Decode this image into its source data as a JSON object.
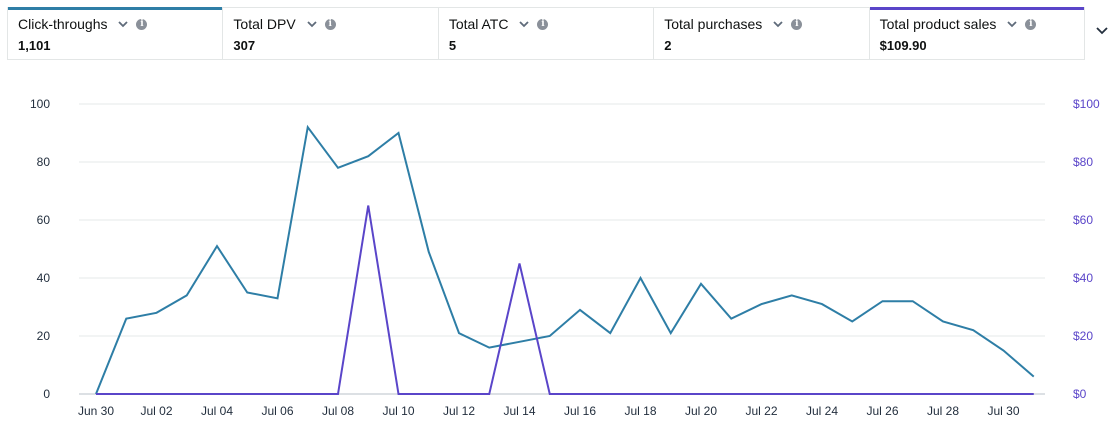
{
  "metrics": [
    {
      "label": "Click-throughs",
      "value": "1,101",
      "accent": "#2e7ea6"
    },
    {
      "label": "Total DPV",
      "value": "307",
      "accent": ""
    },
    {
      "label": "Total ATC",
      "value": "5",
      "accent": ""
    },
    {
      "label": "Total purchases",
      "value": "2",
      "accent": ""
    },
    {
      "label": "Total product sales",
      "value": "$109.90",
      "accent": "#5a45c9"
    }
  ],
  "icons": {
    "dropdown": "chevron-down-icon",
    "info": "info-icon",
    "expand": "chevron-down-icon"
  },
  "chart_data": {
    "type": "line",
    "categories": [
      "Jun 30",
      "Jul 01",
      "Jul 02",
      "Jul 03",
      "Jul 04",
      "Jul 05",
      "Jul 06",
      "Jul 07",
      "Jul 08",
      "Jul 09",
      "Jul 10",
      "Jul 11",
      "Jul 12",
      "Jul 13",
      "Jul 14",
      "Jul 15",
      "Jul 16",
      "Jul 17",
      "Jul 18",
      "Jul 19",
      "Jul 20",
      "Jul 21",
      "Jul 22",
      "Jul 23",
      "Jul 24",
      "Jul 25",
      "Jul 26",
      "Jul 27",
      "Jul 28",
      "Jul 29",
      "Jul 30",
      "Jul 31"
    ],
    "xticks": [
      "Jun 30",
      "Jul 02",
      "Jul 04",
      "Jul 06",
      "Jul 08",
      "Jul 10",
      "Jul 12",
      "Jul 14",
      "Jul 16",
      "Jul 18",
      "Jul 20",
      "Jul 22",
      "Jul 24",
      "Jul 26",
      "Jul 28",
      "Jul 30"
    ],
    "series": [
      {
        "name": "Click-throughs",
        "axis": "left",
        "color": "#2e7ea6",
        "values": [
          0,
          26,
          28,
          34,
          51,
          35,
          33,
          92,
          78,
          82,
          90,
          49,
          21,
          16,
          18,
          20,
          29,
          21,
          40,
          21,
          38,
          26,
          31,
          34,
          31,
          25,
          32,
          32,
          25,
          22,
          15,
          6
        ]
      },
      {
        "name": "Total product sales",
        "axis": "right",
        "color": "#5a45c9",
        "values": [
          0,
          0,
          0,
          0,
          0,
          0,
          0,
          0,
          0,
          65,
          0,
          0,
          0,
          0,
          45,
          0,
          0,
          0,
          0,
          0,
          0,
          0,
          0,
          0,
          0,
          0,
          0,
          0,
          0,
          0,
          0,
          0
        ]
      }
    ],
    "ylim_left": [
      0,
      100
    ],
    "yticks_left": [
      "0",
      "20",
      "40",
      "60",
      "80",
      "100"
    ],
    "ylim_right": [
      0,
      100
    ],
    "yticks_right": [
      "$0",
      "$20",
      "$40",
      "$60",
      "$80",
      "$100"
    ],
    "grid": true
  }
}
